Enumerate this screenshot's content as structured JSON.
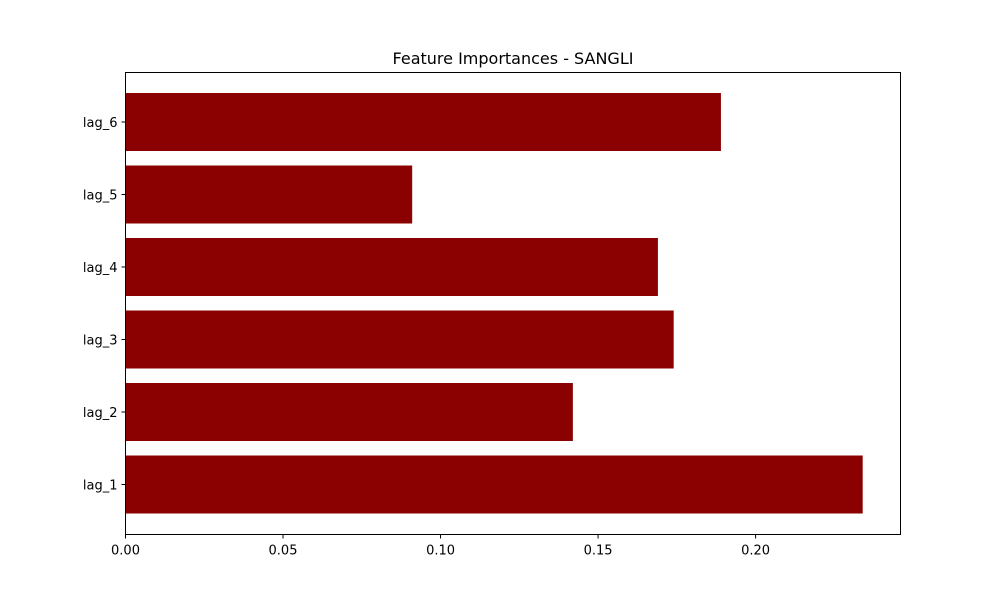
{
  "chart_data": {
    "type": "bar",
    "orientation": "horizontal",
    "title": "Feature Importances - SANGLI",
    "xlabel": "",
    "ylabel": "",
    "categories": [
      "lag_1",
      "lag_2",
      "lag_3",
      "lag_4",
      "lag_5",
      "lag_6"
    ],
    "values": [
      0.234,
      0.142,
      0.174,
      0.169,
      0.091,
      0.189
    ],
    "xlim": [
      0.0,
      0.246
    ],
    "x_ticks": [
      0.0,
      0.05,
      0.1,
      0.15,
      0.2
    ],
    "x_tick_labels": [
      "0.00",
      "0.05",
      "0.10",
      "0.15",
      "0.20"
    ],
    "grid": false,
    "legend": "none",
    "bar_color": "#8b0000"
  }
}
